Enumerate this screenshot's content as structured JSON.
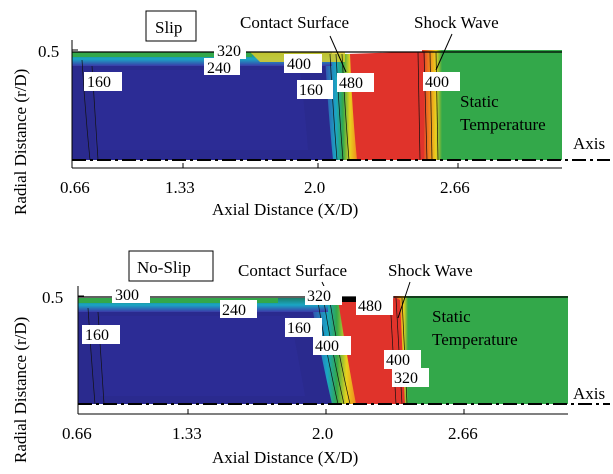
{
  "colors": {
    "blue": "#2a2a8e",
    "blue_mid": "#3a3aa8",
    "cyan": "#1aa6c4",
    "teal": "#1f8f7a",
    "green": "#33a84a",
    "yellow": "#e8d21e",
    "orange": "#f08a1c",
    "red": "#e0332b",
    "black": "#000000"
  },
  "chart_data": [
    {
      "type": "heatmap",
      "panel": "top",
      "title": "Slip",
      "xlabel": "Axial Distance (X/D)",
      "ylabel": "Radial Distance (r/D)",
      "x_ticks": [
        "0.66",
        "1.33",
        "2.0",
        "2.66"
      ],
      "y_ticks": [
        "0.5"
      ],
      "xlim": [
        0.66,
        3.0
      ],
      "ylim": [
        0,
        0.5
      ],
      "axis_label": "Axis",
      "annotations": [
        "Contact Surface",
        "Shock Wave",
        "Static Temperature"
      ],
      "annotation_lines": [
        "Static",
        "Temperature"
      ],
      "contour_labels": [
        "320",
        "240",
        "400",
        "160",
        "160",
        "480",
        "400"
      ],
      "regions": [
        {
          "name": "low",
          "x_start": 0.66,
          "x_end": 1.93
        },
        {
          "name": "contact_surface",
          "x": 2.02
        },
        {
          "name": "hot",
          "x_start": 2.05,
          "x_end": 2.43
        },
        {
          "name": "shock_wave",
          "x": 2.47
        },
        {
          "name": "ambient",
          "x_start": 2.5,
          "x_end": 2.92
        }
      ]
    },
    {
      "type": "heatmap",
      "panel": "bottom",
      "title": "No-Slip",
      "xlabel": "Axial Distance (X/D)",
      "ylabel": "Radial Distance (r/D)",
      "x_ticks": [
        "0.66",
        "1.33",
        "2.0",
        "2.66"
      ],
      "y_ticks": [
        "0.5"
      ],
      "xlim": [
        0.66,
        3.0
      ],
      "ylim": [
        0,
        0.5
      ],
      "axis_label": "Axis",
      "annotations": [
        "Contact Surface",
        "Shock Wave",
        "Static Temperature"
      ],
      "annotation_lines": [
        "Static",
        "Temperature"
      ],
      "contour_labels": [
        "300",
        "240",
        "320",
        "480",
        "160",
        "160",
        "400",
        "400",
        "320"
      ],
      "regions": [
        {
          "name": "low",
          "x_start": 0.66,
          "x_end": 1.87
        },
        {
          "name": "contact_surface",
          "x": 1.93
        },
        {
          "name": "hot",
          "x_start": 1.95,
          "x_end": 2.33
        },
        {
          "name": "shock_wave",
          "x": 2.36
        },
        {
          "name": "ambient",
          "x_start": 2.4,
          "x_end": 3.0
        }
      ]
    }
  ]
}
